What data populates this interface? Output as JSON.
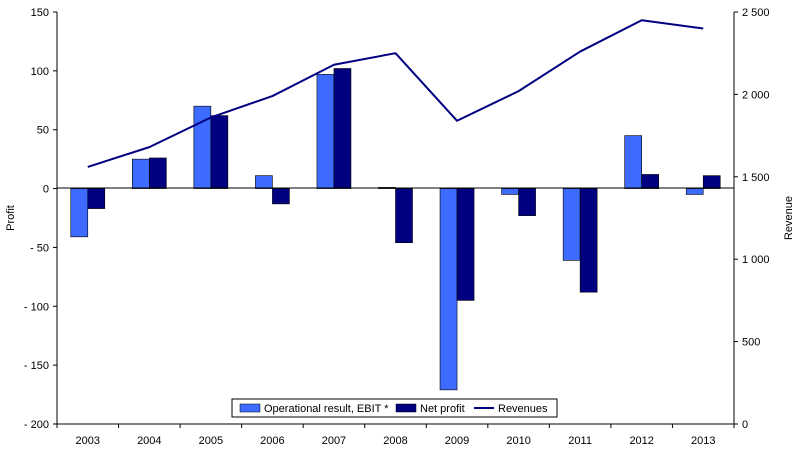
{
  "chart_data": {
    "type": "bar",
    "categories": [
      "2003",
      "2004",
      "2005",
      "2006",
      "2007",
      "2008",
      "2009",
      "2010",
      "2011",
      "2012",
      "2013"
    ],
    "series": [
      {
        "name": "Operational result, EBIT *",
        "type": "bar",
        "axis": "left",
        "color": "#3d6bff",
        "values": [
          -41,
          25,
          70,
          11,
          97,
          1,
          -171,
          -5,
          -61,
          45,
          -5
        ]
      },
      {
        "name": "Net profit",
        "type": "bar",
        "axis": "left",
        "color": "#000080",
        "values": [
          -17,
          26,
          62,
          -13,
          102,
          -46,
          -95,
          -23,
          -88,
          12,
          11
        ]
      },
      {
        "name": "Revenues",
        "type": "line",
        "axis": "right",
        "color": "#000080",
        "values": [
          1560,
          1680,
          1860,
          1990,
          2180,
          2250,
          1840,
          2020,
          2260,
          2450,
          2400
        ]
      }
    ],
    "ylabel": "Profit",
    "y2label": "Revenue",
    "ylim": [
      -200,
      150
    ],
    "y2lim": [
      0,
      2500
    ],
    "yticks": [
      -200,
      -150,
      -100,
      -50,
      0,
      50,
      100,
      150
    ],
    "yticklabels": [
      "- 200",
      "- 150",
      "- 100",
      "- 50",
      "0",
      "50",
      "100",
      "150"
    ],
    "y2ticks": [
      0,
      500,
      1000,
      1500,
      2000,
      2500
    ],
    "y2ticklabels": [
      "0",
      "500",
      "1 000",
      "1 500",
      "2 000",
      "2 500"
    ],
    "grid": false,
    "legend_position": "bottom-center"
  }
}
